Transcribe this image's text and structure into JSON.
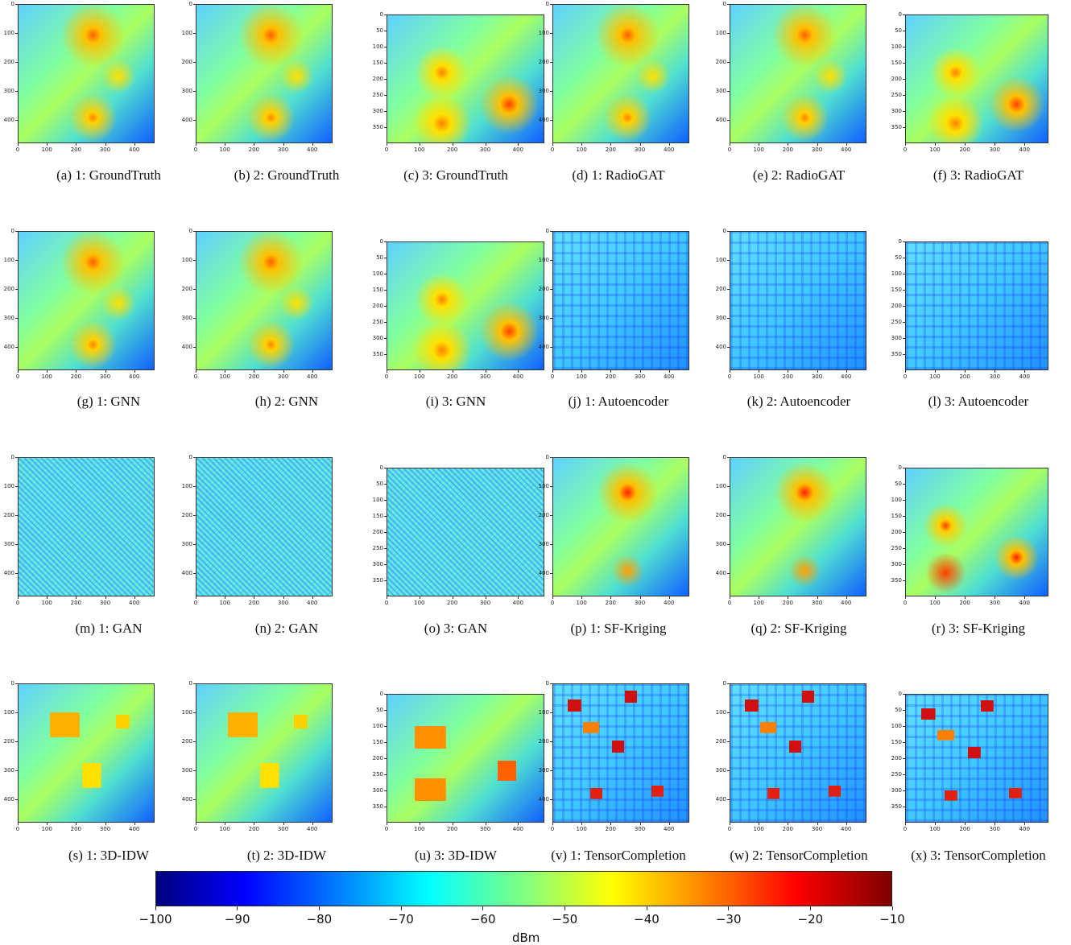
{
  "figure": {
    "panels": [
      {
        "caption": "(a) 1: GroundTruth",
        "xticks": [
          0,
          100,
          200,
          300,
          400
        ],
        "yticks": [
          0,
          100,
          200,
          300,
          400
        ],
        "xlim": [
          0,
          470
        ],
        "ylim": [
          0,
          480
        ]
      },
      {
        "caption": "(b) 2: GroundTruth",
        "xticks": [
          0,
          100,
          200,
          300,
          400
        ],
        "yticks": [
          0,
          100,
          200,
          300,
          400
        ],
        "xlim": [
          0,
          470
        ],
        "ylim": [
          0,
          480
        ]
      },
      {
        "caption": "(c) 3: GroundTruth",
        "xticks": [
          0,
          100,
          200,
          300,
          400
        ],
        "yticks": [
          0,
          50,
          100,
          150,
          200,
          250,
          300,
          350
        ],
        "xlim": [
          0,
          480
        ],
        "ylim": [
          0,
          400
        ]
      },
      {
        "caption": "(d) 1: RadioGAT",
        "xticks": [
          0,
          100,
          200,
          300,
          400
        ],
        "yticks": [
          0,
          100,
          200,
          300,
          400
        ],
        "xlim": [
          0,
          470
        ],
        "ylim": [
          0,
          480
        ]
      },
      {
        "caption": "(e) 2: RadioGAT",
        "xticks": [
          0,
          100,
          200,
          300,
          400
        ],
        "yticks": [
          0,
          100,
          200,
          300,
          400
        ],
        "xlim": [
          0,
          470
        ],
        "ylim": [
          0,
          480
        ]
      },
      {
        "caption": "(f) 3: RadioGAT",
        "xticks": [
          0,
          100,
          200,
          300,
          400
        ],
        "yticks": [
          0,
          50,
          100,
          150,
          200,
          250,
          300,
          350
        ],
        "xlim": [
          0,
          480
        ],
        "ylim": [
          0,
          400
        ]
      },
      {
        "caption": "(g) 1: GNN",
        "xticks": [
          0,
          100,
          200,
          300,
          400
        ],
        "yticks": [
          0,
          100,
          200,
          300,
          400
        ],
        "xlim": [
          0,
          470
        ],
        "ylim": [
          0,
          480
        ]
      },
      {
        "caption": "(h) 2: GNN",
        "xticks": [
          0,
          100,
          200,
          300,
          400
        ],
        "yticks": [
          0,
          100,
          200,
          300,
          400
        ],
        "xlim": [
          0,
          470
        ],
        "ylim": [
          0,
          480
        ]
      },
      {
        "caption": "(i) 3: GNN",
        "xticks": [
          0,
          100,
          200,
          300,
          400
        ],
        "yticks": [
          0,
          50,
          100,
          150,
          200,
          250,
          300,
          350
        ],
        "xlim": [
          0,
          480
        ],
        "ylim": [
          0,
          400
        ]
      },
      {
        "caption": "(j) 1: Autoencoder",
        "xticks": [
          0,
          100,
          200,
          300,
          400
        ],
        "yticks": [
          0,
          100,
          200,
          300,
          400
        ],
        "xlim": [
          0,
          470
        ],
        "ylim": [
          0,
          480
        ]
      },
      {
        "caption": "(k) 2: Autoencoder",
        "xticks": [
          0,
          100,
          200,
          300,
          400
        ],
        "yticks": [
          0,
          100,
          200,
          300,
          400
        ],
        "xlim": [
          0,
          470
        ],
        "ylim": [
          0,
          480
        ]
      },
      {
        "caption": "(l) 3: Autoencoder",
        "xticks": [
          0,
          100,
          200,
          300,
          400
        ],
        "yticks": [
          0,
          50,
          100,
          150,
          200,
          250,
          300,
          350
        ],
        "xlim": [
          0,
          480
        ],
        "ylim": [
          0,
          400
        ]
      },
      {
        "caption": "(m) 1: GAN",
        "xticks": [
          0,
          100,
          200,
          300,
          400
        ],
        "yticks": [
          0,
          100,
          200,
          300,
          400
        ],
        "xlim": [
          0,
          470
        ],
        "ylim": [
          0,
          480
        ]
      },
      {
        "caption": "(n) 2: GAN",
        "xticks": [
          0,
          100,
          200,
          300,
          400
        ],
        "yticks": [
          0,
          100,
          200,
          300,
          400
        ],
        "xlim": [
          0,
          470
        ],
        "ylim": [
          0,
          480
        ]
      },
      {
        "caption": "(o) 3: GAN",
        "xticks": [
          0,
          100,
          200,
          300,
          400
        ],
        "yticks": [
          0,
          50,
          100,
          150,
          200,
          250,
          300,
          350
        ],
        "xlim": [
          0,
          480
        ],
        "ylim": [
          0,
          400
        ]
      },
      {
        "caption": "(p) 1: SF-Kriging",
        "xticks": [
          0,
          100,
          200,
          300,
          400
        ],
        "yticks": [
          0,
          100,
          200,
          300,
          400
        ],
        "xlim": [
          0,
          470
        ],
        "ylim": [
          0,
          480
        ]
      },
      {
        "caption": "(q) 2: SF-Kriging",
        "xticks": [
          0,
          100,
          200,
          300,
          400
        ],
        "yticks": [
          0,
          100,
          200,
          300,
          400
        ],
        "xlim": [
          0,
          470
        ],
        "ylim": [
          0,
          480
        ]
      },
      {
        "caption": "(r) 3: SF-Kriging",
        "xticks": [
          0,
          100,
          200,
          300,
          400
        ],
        "yticks": [
          0,
          50,
          100,
          150,
          200,
          250,
          300,
          350
        ],
        "xlim": [
          0,
          480
        ],
        "ylim": [
          0,
          400
        ]
      },
      {
        "caption": "(s) 1: 3D-IDW",
        "xticks": [
          0,
          100,
          200,
          300,
          400
        ],
        "yticks": [
          0,
          100,
          200,
          300,
          400
        ],
        "xlim": [
          0,
          470
        ],
        "ylim": [
          0,
          480
        ]
      },
      {
        "caption": "(t) 2: 3D-IDW",
        "xticks": [
          0,
          100,
          200,
          300,
          400
        ],
        "yticks": [
          0,
          100,
          200,
          300,
          400
        ],
        "xlim": [
          0,
          470
        ],
        "ylim": [
          0,
          480
        ]
      },
      {
        "caption": "(u) 3: 3D-IDW",
        "xticks": [
          0,
          100,
          200,
          300,
          400
        ],
        "yticks": [
          0,
          50,
          100,
          150,
          200,
          250,
          300,
          350
        ],
        "xlim": [
          0,
          480
        ],
        "ylim": [
          0,
          400
        ]
      },
      {
        "caption": "(v) 1: TensorCompletion",
        "xticks": [
          0,
          100,
          200,
          300,
          400
        ],
        "yticks": [
          0,
          100,
          200,
          300,
          400
        ],
        "xlim": [
          0,
          470
        ],
        "ylim": [
          0,
          480
        ]
      },
      {
        "caption": "(w) 2: TensorCompletion",
        "xticks": [
          0,
          100,
          200,
          300,
          400
        ],
        "yticks": [
          0,
          100,
          200,
          300,
          400
        ],
        "xlim": [
          0,
          470
        ],
        "ylim": [
          0,
          480
        ]
      },
      {
        "caption": "(x) 3: TensorCompletion",
        "xticks": [
          0,
          100,
          200,
          300,
          400
        ],
        "yticks": [
          0,
          50,
          100,
          150,
          200,
          250,
          300,
          350
        ],
        "xlim": [
          0,
          480
        ],
        "ylim": [
          0,
          400
        ]
      }
    ],
    "colorbar": {
      "label": "dBm",
      "clim": [
        -100,
        -10
      ],
      "ticks": [
        {
          "value": -100,
          "label": "−100"
        },
        {
          "value": -90,
          "label": "−90"
        },
        {
          "value": -80,
          "label": "−80"
        },
        {
          "value": -70,
          "label": "−70"
        },
        {
          "value": -60,
          "label": "−60"
        },
        {
          "value": -50,
          "label": "−50"
        },
        {
          "value": -40,
          "label": "−40"
        },
        {
          "value": -30,
          "label": "−30"
        },
        {
          "value": -20,
          "label": "−20"
        },
        {
          "value": -10,
          "label": "−10"
        }
      ]
    }
  }
}
